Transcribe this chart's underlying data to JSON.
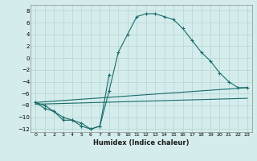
{
  "xlabel": "Humidex (Indice chaleur)",
  "background_color": "#d4edec",
  "grid_color": "#b8d8d6",
  "line_color": "#1a6b6b",
  "xlim": [
    -0.5,
    23.5
  ],
  "ylim": [
    -12.5,
    9.0
  ],
  "xticks": [
    0,
    1,
    2,
    3,
    4,
    5,
    6,
    7,
    8,
    9,
    10,
    11,
    12,
    13,
    14,
    15,
    16,
    17,
    18,
    19,
    20,
    21,
    22,
    23
  ],
  "yticks": [
    -12,
    -10,
    -8,
    -6,
    -4,
    -2,
    0,
    2,
    4,
    6,
    8
  ],
  "lines": [
    {
      "x": [
        0,
        1,
        2,
        3,
        4,
        5,
        6,
        7,
        8,
        9,
        10,
        11,
        12,
        13,
        14,
        15,
        16,
        17,
        18,
        19,
        20,
        21,
        22,
        23
      ],
      "y": [
        -7.5,
        -8.5,
        -9.0,
        -10.5,
        -10.5,
        -11.5,
        -12.0,
        -11.5,
        -5.5,
        1.0,
        4.0,
        7.0,
        7.5,
        7.5,
        7.0,
        6.5,
        5.0,
        3.0,
        1.0,
        -0.5,
        -2.5,
        -4.0,
        -5.0,
        -5.0
      ],
      "has_markers": true
    },
    {
      "x": [
        0,
        1,
        2,
        3,
        4,
        5,
        6,
        7,
        8
      ],
      "y": [
        -7.5,
        -8.0,
        -9.0,
        -10.0,
        -10.5,
        -11.0,
        -12.0,
        -11.5,
        -2.8
      ],
      "has_markers": true
    },
    {
      "x": [
        0,
        23
      ],
      "y": [
        -7.5,
        -5.0
      ],
      "has_markers": false
    },
    {
      "x": [
        0,
        23
      ],
      "y": [
        -7.8,
        -6.8
      ],
      "has_markers": false
    }
  ]
}
